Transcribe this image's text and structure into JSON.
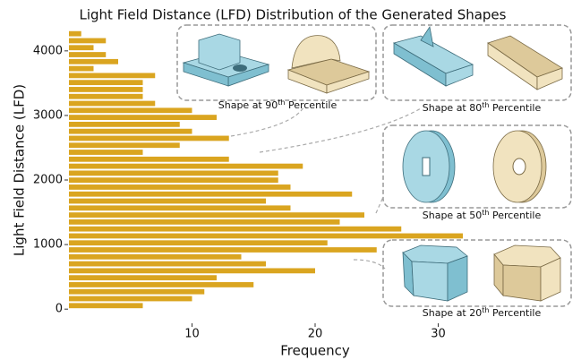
{
  "chart_data": {
    "type": "histogram",
    "title": "Light Field Distance (LFD) Distribution of the Generated Shapes",
    "x_label": "Frequency",
    "y_label": "Light Field Distance (LFD)",
    "orientation": "horizontal",
    "color": "#daa520",
    "bins": [
      0,
      108,
      216,
      324,
      432,
      540,
      648,
      756,
      864,
      972,
      1080,
      1188,
      1296,
      1404,
      1512,
      1620,
      1728,
      1836,
      1944,
      2052,
      2160,
      2268,
      2376,
      2484,
      2592,
      2700,
      2808,
      2916,
      3024,
      3132,
      3240,
      3348,
      3456,
      3564,
      3672,
      3780,
      3888,
      3996,
      4104,
      4212,
      4320
    ],
    "counts": [
      6,
      10,
      11,
      15,
      12,
      20,
      16,
      14,
      25,
      21,
      32,
      27,
      22,
      24,
      18,
      16,
      23,
      18,
      17,
      17,
      19,
      13,
      6,
      9,
      13,
      10,
      9,
      12,
      10,
      7,
      6,
      6,
      6,
      7,
      2,
      4,
      3,
      2,
      3,
      1
    ],
    "xlim": [
      0,
      41.6
    ],
    "xticks": [
      10,
      20,
      30
    ],
    "ylim": [
      -150,
      4400
    ],
    "yticks": [
      0,
      1000,
      2000,
      3000,
      4000
    ],
    "annotations": [
      {
        "prefix": "Shape at 90",
        "sup": "th",
        "suffix": " Percentile"
      },
      {
        "prefix": "Shape at 80",
        "sup": "th",
        "suffix": " Percentile"
      },
      {
        "prefix": "Shape at 50",
        "sup": "th",
        "suffix": " Percentile"
      },
      {
        "prefix": "Shape at 20",
        "sup": "th",
        "suffix": " Percentile"
      }
    ]
  }
}
